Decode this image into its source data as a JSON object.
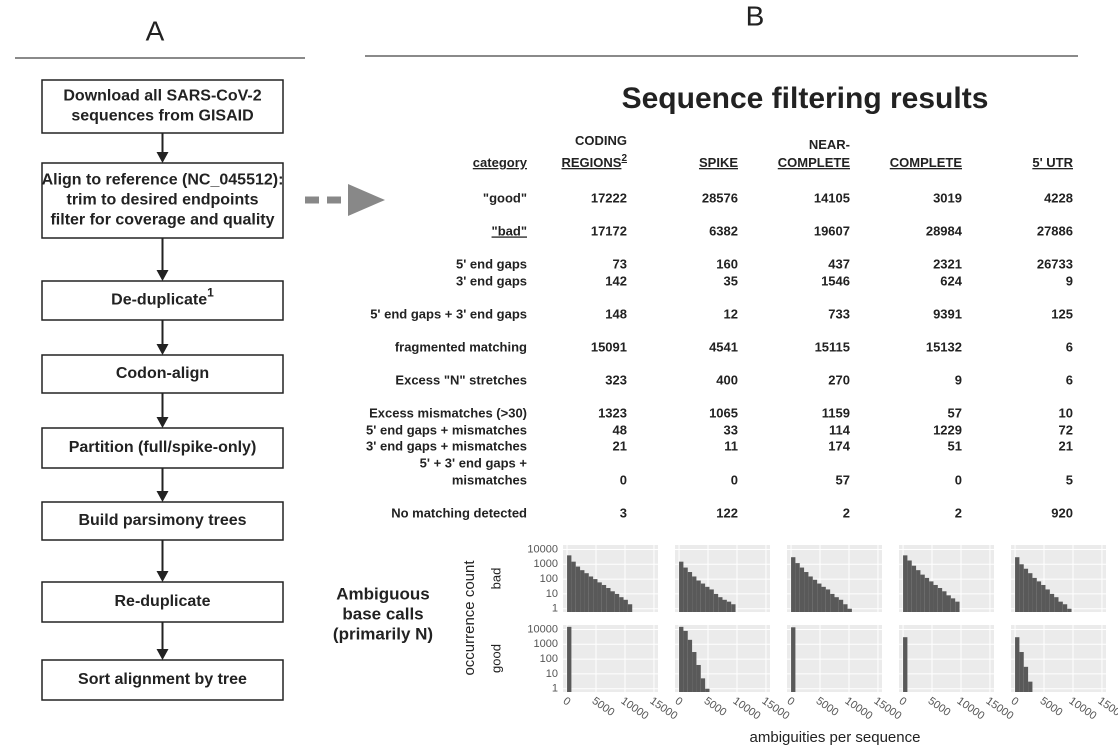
{
  "panel_a": {
    "label": "A",
    "steps": [
      {
        "lines": [
          "Download all SARS-CoV-2",
          "sequences from GISAID"
        ]
      },
      {
        "lines": [
          "Align to reference (NC_045512):",
          "trim to desired endpoints",
          "filter for coverage and quality"
        ]
      },
      {
        "lines": [
          "De-duplicate"
        ],
        "sup": "1"
      },
      {
        "lines": [
          "Codon-align"
        ]
      },
      {
        "lines": [
          "Partition (full/spike-only)"
        ]
      },
      {
        "lines": [
          "Build parsimony trees"
        ]
      },
      {
        "lines": [
          "Re-duplicate"
        ]
      },
      {
        "lines": [
          "Sort alignment by tree"
        ]
      }
    ]
  },
  "panel_b": {
    "label": "B",
    "title": "Sequence filtering results",
    "table": {
      "header": [
        {
          "lines": [
            "category"
          ]
        },
        {
          "lines": [
            "CODING",
            "REGIONS"
          ],
          "sup": "2"
        },
        {
          "lines": [
            "SPIKE"
          ]
        },
        {
          "lines": [
            "NEAR-",
            "COMPLETE"
          ]
        },
        {
          "lines": [
            "COMPLETE"
          ]
        },
        {
          "lines": [
            "5' UTR"
          ]
        }
      ],
      "rows": [
        {
          "label": [
            "\"good\""
          ],
          "values": [
            17222,
            28576,
            14105,
            3019,
            4228
          ]
        },
        {
          "label": [
            "\"bad\""
          ],
          "underline": true,
          "values": [
            17172,
            6382,
            19607,
            28984,
            27886
          ]
        },
        {
          "label": [
            "5' end gaps"
          ],
          "values": [
            73,
            160,
            437,
            2321,
            26733
          ]
        },
        {
          "label": [
            "3' end gaps"
          ],
          "values": [
            142,
            35,
            1546,
            624,
            9
          ]
        },
        {
          "label": [
            "5' end gaps + 3' end gaps"
          ],
          "values": [
            148,
            12,
            733,
            9391,
            125
          ]
        },
        {
          "label": [
            "fragmented matching"
          ],
          "values": [
            15091,
            4541,
            15115,
            15132,
            6
          ]
        },
        {
          "label": [
            "Excess \"N\" stretches"
          ],
          "values": [
            323,
            400,
            270,
            9,
            6
          ]
        },
        {
          "label": [
            "Excess mismatches (>30)"
          ],
          "values": [
            1323,
            1065,
            1159,
            57,
            10
          ]
        },
        {
          "label": [
            "5' end gaps + mismatches"
          ],
          "values": [
            48,
            33,
            114,
            1229,
            72
          ]
        },
        {
          "label": [
            "3' end gaps + mismatches"
          ],
          "values": [
            21,
            11,
            174,
            51,
            21
          ]
        },
        {
          "label": [
            "5' + 3' end gaps +",
            "mismatches"
          ],
          "values": [
            0,
            0,
            57,
            0,
            5
          ]
        },
        {
          "label": [
            "No matching detected"
          ],
          "values": [
            3,
            122,
            2,
            2,
            920
          ]
        }
      ]
    },
    "histograms": {
      "title": [
        "Ambiguous",
        "base calls",
        "(primarily N)"
      ],
      "y_title": "occurrence count",
      "x_title": "ambiguities per sequence",
      "rows": [
        "bad",
        "good"
      ],
      "log": true,
      "color": "#595959",
      "ylim": [
        0.6,
        20000
      ],
      "yticks": [
        10000,
        1000,
        100,
        10,
        1
      ],
      "xlim": [
        -700,
        15700
      ],
      "xticks": [
        0,
        5000,
        10000,
        15000
      ],
      "bins": [
        0,
        750,
        1500,
        2250,
        3000,
        3750,
        4500,
        5250,
        6000,
        6750,
        7500,
        8250,
        9000,
        9750,
        10500,
        11250,
        12000,
        12750,
        13500,
        14250,
        15000
      ],
      "counts": [
        [
          [
            4000,
            1500,
            700,
            400,
            250,
            150,
            100,
            60,
            40,
            25,
            15,
            10,
            6,
            4,
            2,
            0,
            0,
            0,
            0,
            0
          ],
          [
            1500,
            600,
            300,
            150,
            80,
            50,
            30,
            20,
            10,
            6,
            4,
            3,
            2,
            0,
            0,
            0,
            0,
            0,
            0,
            0
          ],
          [
            3000,
            1200,
            600,
            300,
            150,
            90,
            50,
            30,
            20,
            10,
            6,
            4,
            2,
            1,
            0,
            0,
            0,
            0,
            0,
            0
          ],
          [
            4000,
            1800,
            800,
            400,
            200,
            120,
            70,
            40,
            25,
            15,
            8,
            5,
            3,
            0,
            0,
            0,
            0,
            0,
            0,
            0
          ],
          [
            3000,
            1000,
            500,
            250,
            120,
            70,
            40,
            20,
            10,
            6,
            3,
            2,
            1,
            0,
            0,
            0,
            0,
            0,
            0,
            0
          ]
        ],
        [
          [
            15000,
            0,
            0,
            0,
            0,
            0,
            0,
            0,
            0,
            0,
            0,
            0,
            0,
            0,
            0,
            0,
            0,
            0,
            0,
            0
          ],
          [
            15000,
            8000,
            2000,
            300,
            40,
            5,
            1,
            0,
            0,
            0,
            0,
            0,
            0,
            0,
            0,
            0,
            0,
            0,
            0,
            0
          ],
          [
            14000,
            0,
            0,
            0,
            0,
            0,
            0,
            0,
            0,
            0,
            0,
            0,
            0,
            0,
            0,
            0,
            0,
            0,
            0,
            0
          ],
          [
            3000,
            0,
            0,
            0,
            0,
            0,
            0,
            0,
            0,
            0,
            0,
            0,
            0,
            0,
            0,
            0,
            0,
            0,
            0,
            0
          ],
          [
            3000,
            300,
            30,
            3,
            0,
            0,
            0,
            0,
            0,
            0,
            0,
            0,
            0,
            0,
            0,
            0,
            0,
            0,
            0,
            0
          ]
        ]
      ]
    }
  }
}
